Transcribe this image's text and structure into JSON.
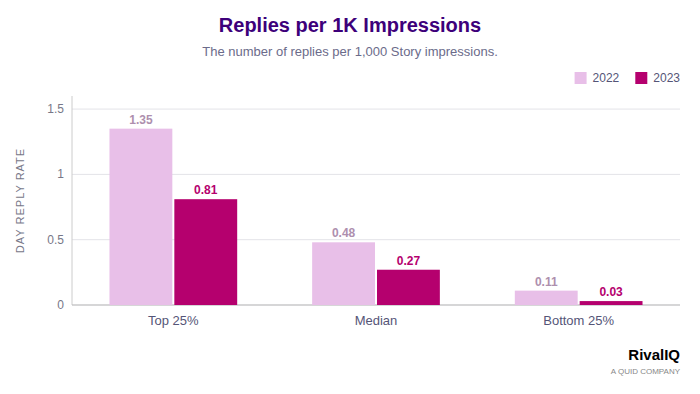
{
  "chart_data": {
    "type": "bar",
    "title": "Replies per 1K Impressions",
    "subtitle": "The number of replies per 1,000 Story impressions.",
    "y_label": "DAY REPLY RATE",
    "categories": [
      "Top 25%",
      "Median",
      "Bottom 25%"
    ],
    "series": [
      {
        "name": "2022",
        "color": "#e8bfe8",
        "values": [
          1.35,
          0.48,
          0.11
        ]
      },
      {
        "name": "2023",
        "color": "#b5006e",
        "values": [
          0.81,
          0.27,
          0.03
        ]
      }
    ],
    "ylim": [
      0,
      1.6
    ],
    "yticks": [
      0,
      0.5,
      1,
      1.5
    ],
    "grid": true,
    "legend": "upper right",
    "data_labels": true,
    "annotations": [
      "RivalIQ",
      "A QUID COMPANY"
    ]
  }
}
